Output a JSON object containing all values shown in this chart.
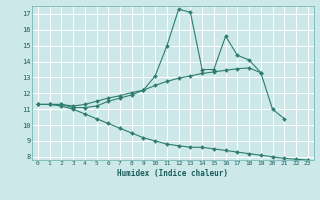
{
  "title": "",
  "xlabel": "Humidex (Indice chaleur)",
  "background_color": "#cde8e8",
  "grid_color": "#ffffff",
  "line_color": "#2e7d6e",
  "xlim": [
    -0.5,
    23.5
  ],
  "ylim": [
    7.8,
    17.5
  ],
  "xticks": [
    0,
    1,
    2,
    3,
    4,
    5,
    6,
    7,
    8,
    9,
    10,
    11,
    12,
    13,
    14,
    15,
    16,
    17,
    18,
    19,
    20,
    21,
    22,
    23
  ],
  "yticks": [
    8,
    9,
    10,
    11,
    12,
    13,
    14,
    15,
    16,
    17
  ],
  "line1_x": [
    0,
    1,
    2,
    3,
    4,
    5,
    6,
    7,
    8,
    9,
    10,
    11,
    12,
    13,
    14,
    15,
    16,
    17,
    18,
    19,
    20,
    21
  ],
  "line1_y": [
    11.3,
    11.3,
    11.3,
    11.1,
    11.1,
    11.2,
    11.5,
    11.7,
    11.9,
    12.2,
    13.1,
    15.0,
    17.3,
    17.1,
    13.5,
    13.5,
    15.6,
    14.4,
    14.1,
    13.3,
    11.0,
    10.4
  ],
  "line2_x": [
    0,
    1,
    2,
    3,
    4,
    5,
    6,
    7,
    8,
    9,
    10,
    11,
    12,
    13,
    14,
    15,
    16,
    17,
    18,
    19
  ],
  "line2_y": [
    11.3,
    11.3,
    11.3,
    11.2,
    11.3,
    11.5,
    11.7,
    11.85,
    12.05,
    12.2,
    12.5,
    12.75,
    12.95,
    13.1,
    13.25,
    13.35,
    13.45,
    13.55,
    13.6,
    13.3
  ],
  "line3_x": [
    0,
    1,
    2,
    3,
    4,
    5,
    6,
    7,
    8,
    9,
    10,
    11,
    12,
    13,
    14,
    15,
    16,
    17,
    18,
    19,
    20,
    21,
    22,
    23
  ],
  "line3_y": [
    11.3,
    11.3,
    11.2,
    11.0,
    10.7,
    10.4,
    10.1,
    9.8,
    9.5,
    9.2,
    9.0,
    8.8,
    8.7,
    8.6,
    8.6,
    8.5,
    8.4,
    8.3,
    8.2,
    8.1,
    8.0,
    7.9,
    7.85,
    7.8
  ]
}
